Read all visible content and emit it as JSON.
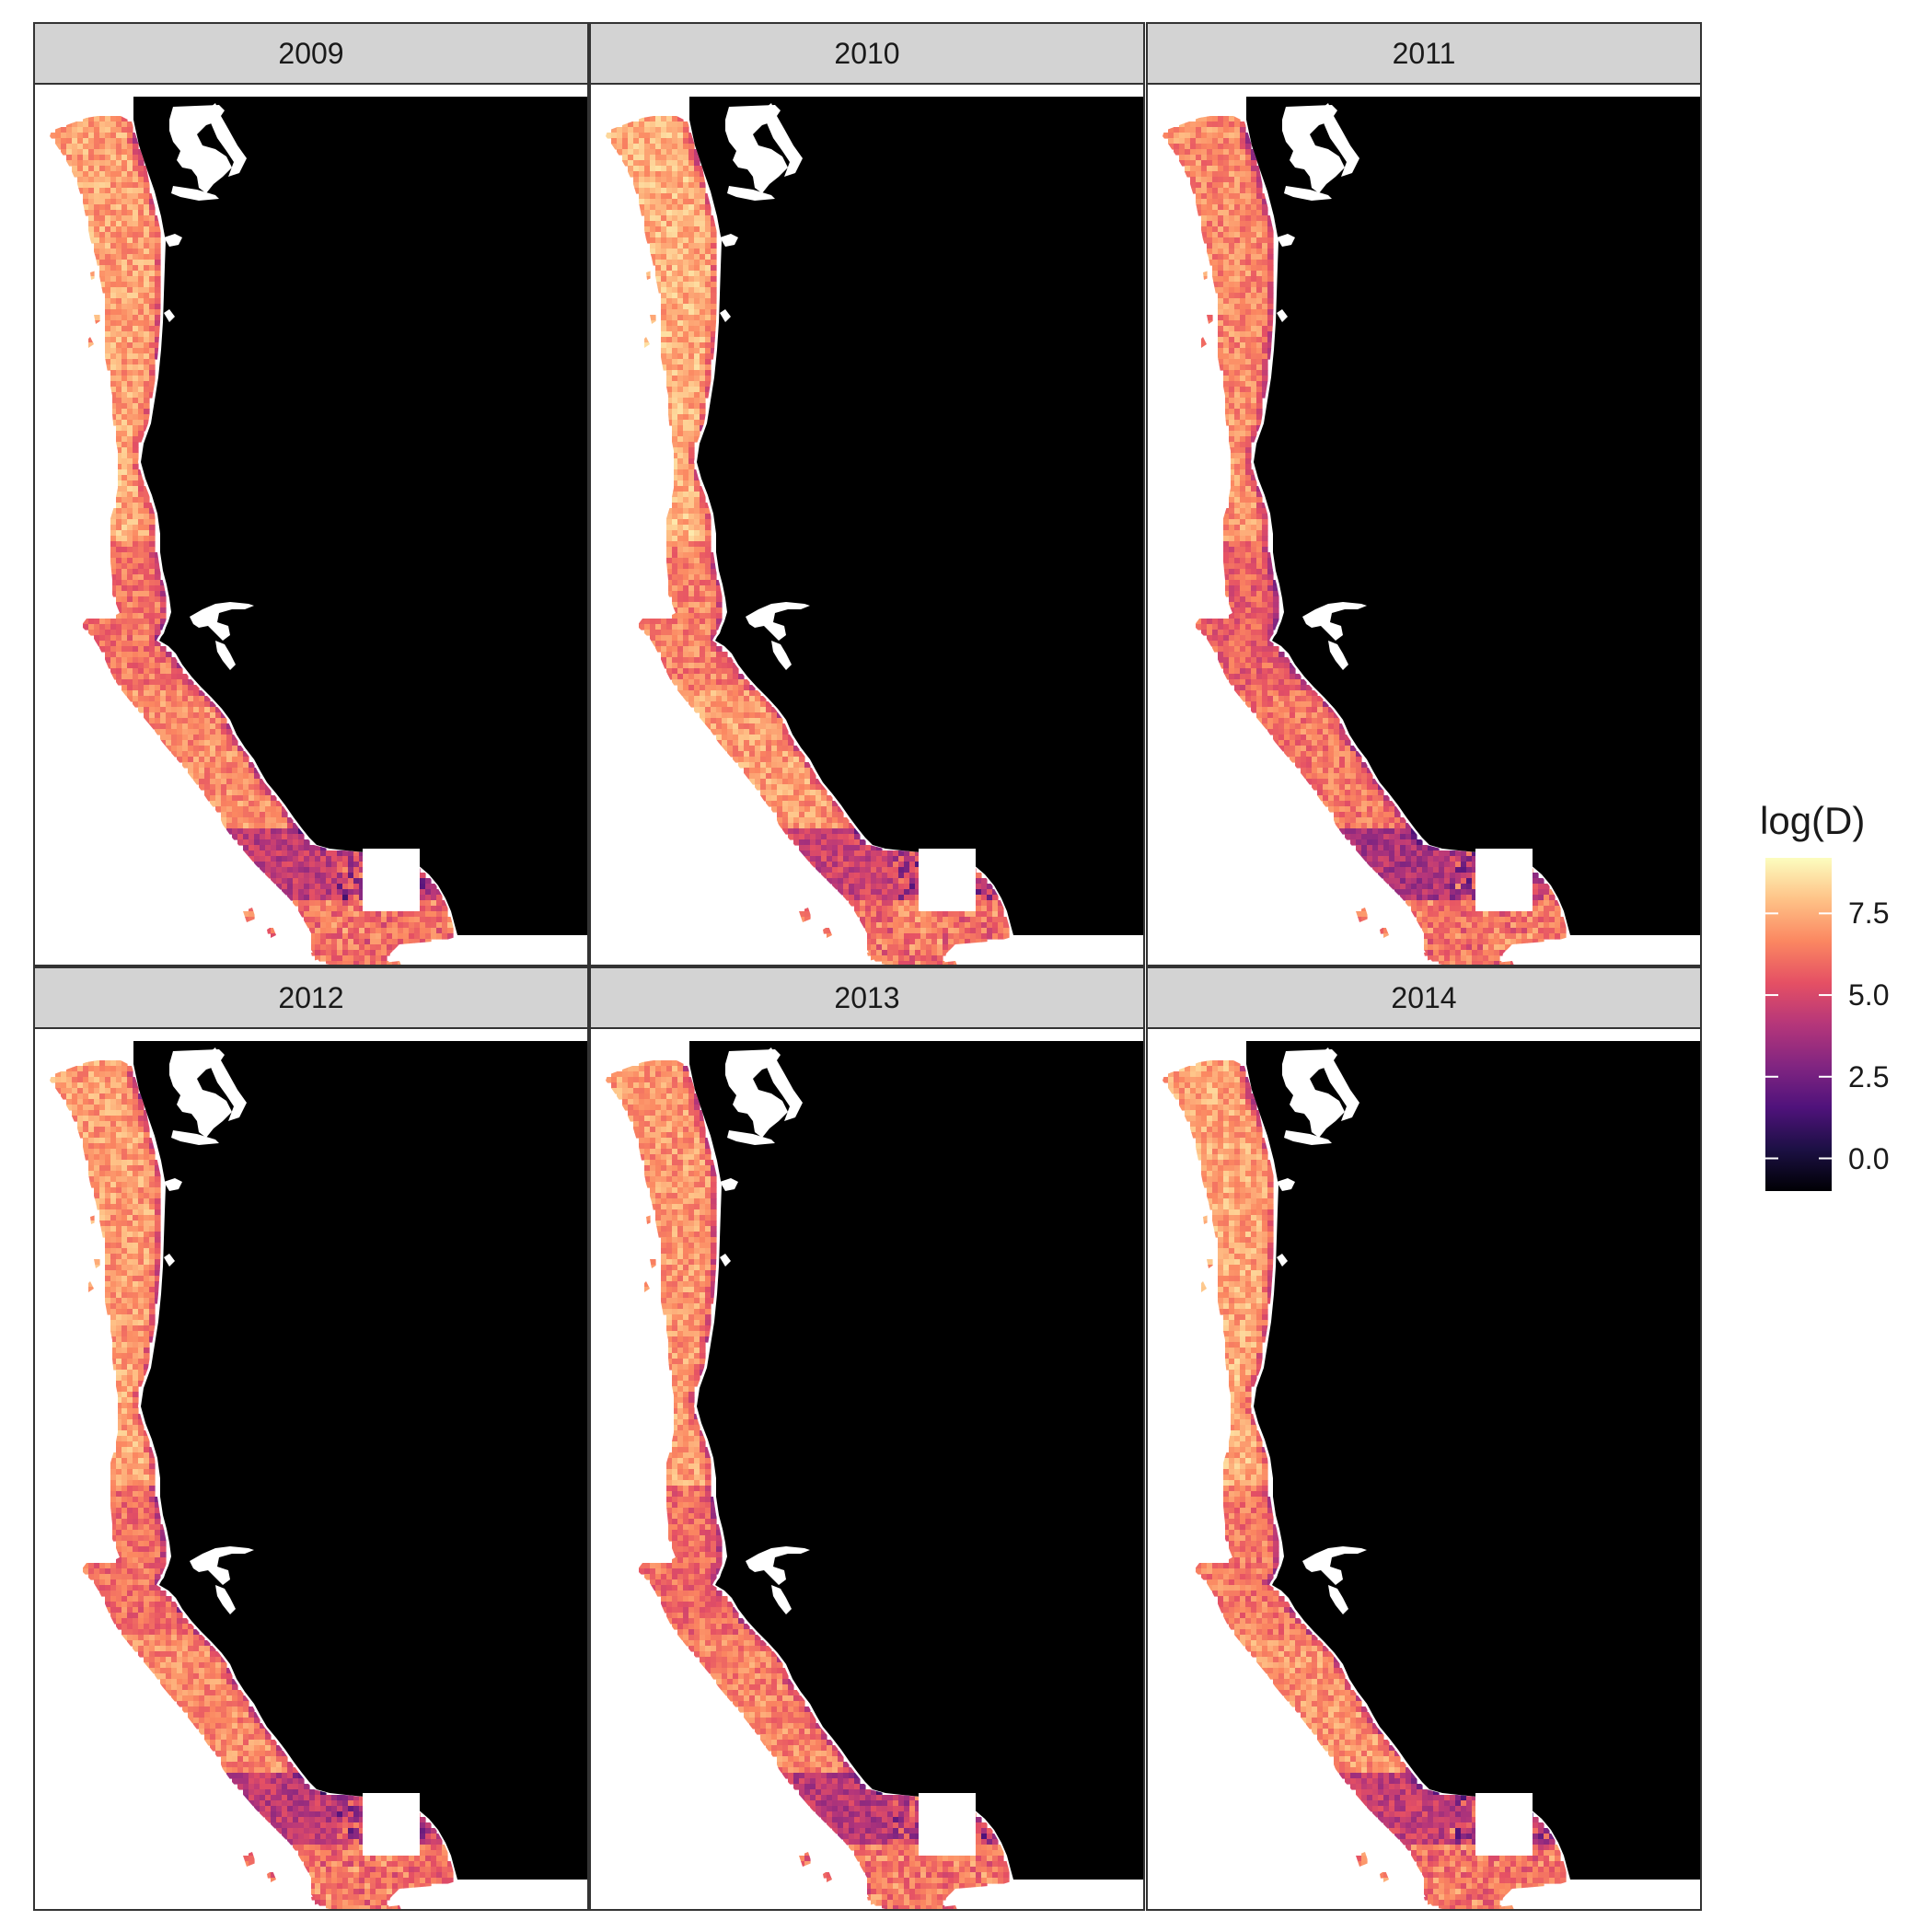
{
  "facets": [
    {
      "label": "2009",
      "variant": 0
    },
    {
      "label": "2010",
      "variant": 1
    },
    {
      "label": "2011",
      "variant": 2
    },
    {
      "label": "2012",
      "variant": 3
    },
    {
      "label": "2013",
      "variant": 4
    },
    {
      "label": "2014",
      "variant": 5
    }
  ],
  "legend": {
    "title": "log(D)",
    "min": -1.0,
    "max": 9.2,
    "ticks": [
      {
        "value": 0.0,
        "label": "0.0"
      },
      {
        "value": 2.5,
        "label": "2.5"
      },
      {
        "value": 5.0,
        "label": "5.0"
      },
      {
        "value": 7.5,
        "label": "7.5"
      }
    ],
    "palette": [
      "#000004",
      "#1c1044",
      "#4f127b",
      "#812581",
      "#b5367a",
      "#e55064",
      "#fb8761",
      "#fec287",
      "#fcfdbf"
    ]
  },
  "colors": {
    "land": "#000000",
    "ocean": "#ffffff",
    "strip": "#d3d3d3",
    "border": "#333333"
  }
}
